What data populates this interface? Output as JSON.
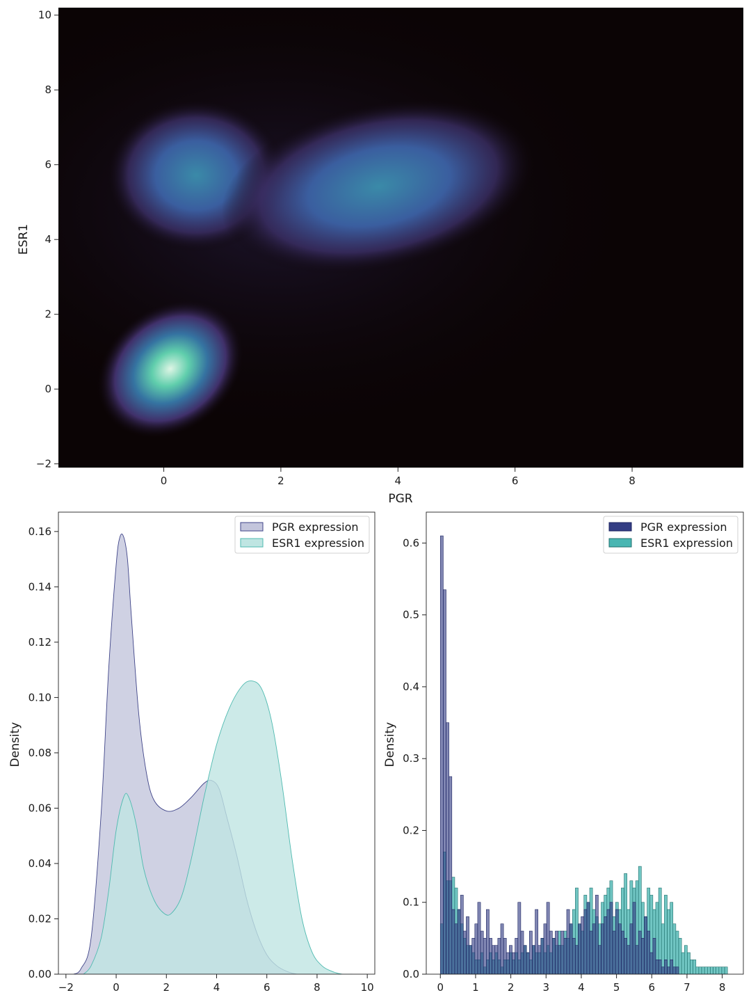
{
  "chart_data": [
    {
      "type": "heatmap",
      "kind": "kde2d",
      "xlabel": "PGR",
      "ylabel": "ESR1",
      "xlim": [
        -1.8,
        9.9
      ],
      "ylim": [
        -2.1,
        10.2
      ],
      "xticks": [
        0,
        2,
        4,
        6,
        8
      ],
      "yticks": [
        -2,
        0,
        2,
        4,
        6,
        8,
        10
      ],
      "colormap": "mako",
      "colors": [
        "#0b0405",
        "#3e356b",
        "#357ba2",
        "#49c1ad",
        "#def5e5"
      ],
      "grid": false,
      "modes": [
        {
          "x": 0.2,
          "y": 0.5,
          "peak": "highest"
        },
        {
          "x": 0.6,
          "y": 5.7,
          "peak": "medium"
        },
        {
          "x": 3.8,
          "y": 5.2,
          "peak": "medium"
        }
      ]
    },
    {
      "type": "area",
      "kind": "kde",
      "xlabel": "",
      "ylabel": "Density",
      "xlim": [
        -2.3,
        10.3
      ],
      "ylim": [
        0,
        0.167
      ],
      "xticks": [
        -2,
        0,
        2,
        4,
        6,
        8,
        10
      ],
      "yticks": [
        0.0,
        0.02,
        0.04,
        0.06,
        0.08,
        0.1,
        0.12,
        0.14,
        0.16
      ],
      "ytick_labels": [
        "0.00",
        "0.02",
        "0.04",
        "0.06",
        "0.08",
        "0.10",
        "0.12",
        "0.14",
        "0.16"
      ],
      "legend_position": "upper right",
      "series": [
        {
          "name": "PGR expression",
          "fill": "#c3c5dc",
          "line": "#3f4488",
          "x": [
            -1.7,
            -1.4,
            -1.0,
            -0.6,
            -0.3,
            0.0,
            0.15,
            0.3,
            0.45,
            0.6,
            0.9,
            1.2,
            1.5,
            2.0,
            2.5,
            3.0,
            3.5,
            3.8,
            4.1,
            4.4,
            4.8,
            5.2,
            5.6,
            6.0,
            6.4,
            6.8,
            7.2,
            7.6,
            8.0,
            8.4
          ],
          "values": [
            0.0,
            0.002,
            0.013,
            0.058,
            0.11,
            0.148,
            0.158,
            0.158,
            0.15,
            0.13,
            0.094,
            0.073,
            0.063,
            0.059,
            0.06,
            0.064,
            0.069,
            0.07,
            0.067,
            0.057,
            0.043,
            0.027,
            0.015,
            0.007,
            0.003,
            0.001,
            0.0,
            0.0,
            0.0,
            0.0
          ]
        },
        {
          "name": "ESR1 expression",
          "fill": "#bfe5e2",
          "line": "#4fbab0",
          "x": [
            -1.3,
            -1.0,
            -0.6,
            -0.3,
            0.0,
            0.3,
            0.5,
            0.8,
            1.1,
            1.5,
            1.9,
            2.2,
            2.6,
            3.0,
            3.5,
            4.0,
            4.5,
            5.0,
            5.4,
            5.8,
            6.2,
            6.6,
            7.0,
            7.4,
            7.8,
            8.2,
            8.6,
            9.0,
            9.4
          ],
          "values": [
            0.0,
            0.003,
            0.013,
            0.03,
            0.052,
            0.064,
            0.064,
            0.054,
            0.038,
            0.027,
            0.022,
            0.022,
            0.028,
            0.042,
            0.064,
            0.083,
            0.096,
            0.104,
            0.106,
            0.103,
            0.091,
            0.069,
            0.042,
            0.02,
            0.008,
            0.003,
            0.001,
            0.0,
            0.0
          ]
        }
      ]
    },
    {
      "type": "bar",
      "kind": "histogram",
      "xlabel": "",
      "ylabel": "Density",
      "xlim": [
        -0.4,
        8.6
      ],
      "ylim": [
        0,
        0.643
      ],
      "xticks": [
        0,
        1,
        2,
        3,
        4,
        5,
        6,
        7,
        8
      ],
      "yticks": [
        0.0,
        0.1,
        0.2,
        0.3,
        0.4,
        0.5,
        0.6
      ],
      "ytick_labels": [
        "0.0",
        "0.1",
        "0.2",
        "0.3",
        "0.4",
        "0.5",
        "0.6"
      ],
      "bin_start": 0.0,
      "bin_width": 0.0815,
      "legend_position": "upper right",
      "series": [
        {
          "name": "PGR expression",
          "color": "#333d84",
          "values": [
            0.61,
            0.535,
            0.35,
            0.275,
            0.09,
            0.07,
            0.09,
            0.11,
            0.06,
            0.08,
            0.04,
            0.05,
            0.07,
            0.1,
            0.06,
            0.05,
            0.09,
            0.05,
            0.04,
            0.04,
            0.05,
            0.07,
            0.05,
            0.03,
            0.04,
            0.03,
            0.05,
            0.1,
            0.06,
            0.04,
            0.03,
            0.06,
            0.04,
            0.09,
            0.04,
            0.05,
            0.07,
            0.1,
            0.06,
            0.05,
            0.06,
            0.04,
            0.06,
            0.05,
            0.09,
            0.07,
            0.05,
            0.04,
            0.07,
            0.08,
            0.09,
            0.1,
            0.06,
            0.07,
            0.11,
            0.04,
            0.07,
            0.08,
            0.09,
            0.1,
            0.06,
            0.09,
            0.07,
            0.06,
            0.05,
            0.04,
            0.07,
            0.1,
            0.04,
            0.06,
            0.05,
            0.08,
            0.06,
            0.03,
            0.05,
            0.02,
            0.02,
            0.01,
            0.02,
            0.01,
            0.02,
            0.01,
            0.01,
            0.0,
            0.0,
            0.0,
            0.0,
            0.0,
            0.0,
            0.0,
            0.0,
            0.0,
            0.0,
            0.0,
            0.0,
            0.0,
            0.0,
            0.0,
            0.0,
            0.0
          ]
        },
        {
          "name": "ESR1 expression",
          "color": "#49b6b2",
          "values": [
            0.07,
            0.17,
            0.13,
            0.13,
            0.135,
            0.12,
            0.09,
            0.07,
            0.05,
            0.04,
            0.04,
            0.03,
            0.02,
            0.02,
            0.03,
            0.01,
            0.02,
            0.03,
            0.02,
            0.03,
            0.02,
            0.01,
            0.02,
            0.02,
            0.03,
            0.02,
            0.03,
            0.02,
            0.03,
            0.04,
            0.03,
            0.02,
            0.04,
            0.03,
            0.03,
            0.05,
            0.03,
            0.04,
            0.03,
            0.05,
            0.04,
            0.06,
            0.04,
            0.06,
            0.05,
            0.07,
            0.09,
            0.12,
            0.07,
            0.06,
            0.11,
            0.1,
            0.12,
            0.09,
            0.08,
            0.07,
            0.1,
            0.11,
            0.12,
            0.13,
            0.08,
            0.1,
            0.09,
            0.12,
            0.14,
            0.09,
            0.13,
            0.12,
            0.13,
            0.15,
            0.1,
            0.08,
            0.12,
            0.11,
            0.09,
            0.1,
            0.12,
            0.07,
            0.11,
            0.09,
            0.1,
            0.07,
            0.06,
            0.05,
            0.03,
            0.04,
            0.03,
            0.02,
            0.02,
            0.01,
            0.01,
            0.01,
            0.01,
            0.01,
            0.01,
            0.01,
            0.01,
            0.01,
            0.01,
            0.01
          ]
        }
      ]
    }
  ]
}
